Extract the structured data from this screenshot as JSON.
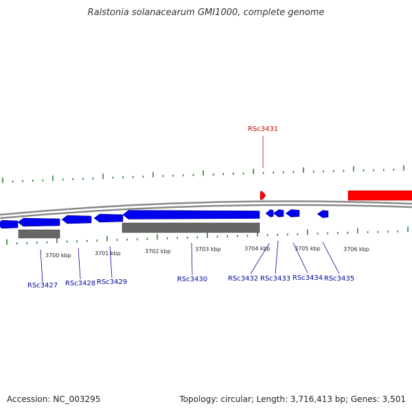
{
  "title": "Ralstonia solanacearum GMI1000, complete genome",
  "footer": {
    "accession": "Accession: NC_003295",
    "summary": "Topology: circular; Length: 3,716,413 bp; Genes: 3,501"
  },
  "colors": {
    "forward_gene": "#ff0000",
    "reverse_gene": "#0000ee",
    "rna_block": "#666666",
    "backbone": "#888888",
    "ticks": "#1a7a1a",
    "label_forward": "#cc0000",
    "label_reverse": "#000099"
  },
  "scale_labels": [
    "3700 kbp",
    "3701 kbp",
    "3702 kbp",
    "3703 kbp",
    "3704 kbp",
    "3705 kbp",
    "3706 kbp"
  ],
  "genes": [
    {
      "id": "RSc3427",
      "strand": "reverse"
    },
    {
      "id": "RSc3428",
      "strand": "reverse"
    },
    {
      "id": "RSc3429",
      "strand": "reverse"
    },
    {
      "id": "RSc3430",
      "strand": "reverse"
    },
    {
      "id": "RSc3431",
      "strand": "forward"
    },
    {
      "id": "RSc3432",
      "strand": "reverse"
    },
    {
      "id": "RSc3433",
      "strand": "reverse"
    },
    {
      "id": "RSc3434",
      "strand": "reverse"
    },
    {
      "id": "RSc3435",
      "strand": "reverse"
    }
  ]
}
